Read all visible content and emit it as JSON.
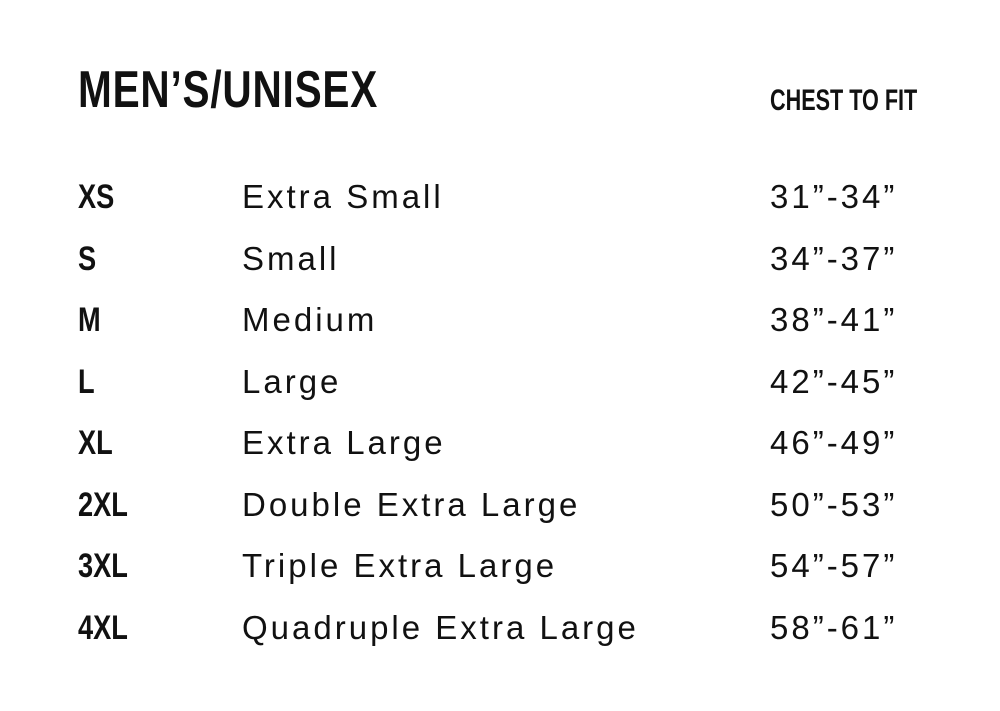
{
  "title": "MEN’S/UNISEX",
  "column_header": "CHEST TO FIT",
  "rows": [
    {
      "code": "XS",
      "name": "Extra Small",
      "chest": "31”-34”"
    },
    {
      "code": "S",
      "name": "Small",
      "chest": "34”-37”"
    },
    {
      "code": "M",
      "name": "Medium",
      "chest": "38”-41”"
    },
    {
      "code": "L",
      "name": "Large",
      "chest": "42”-45”"
    },
    {
      "code": "XL",
      "name": "Extra Large",
      "chest": "46”-49”"
    },
    {
      "code": "2XL",
      "name": "Double Extra Large",
      "chest": "50”-53”"
    },
    {
      "code": "3XL",
      "name": "Triple Extra Large",
      "chest": "54”-57”"
    },
    {
      "code": "4XL",
      "name": "Quadruple Extra Large",
      "chest": "58”-61”"
    }
  ]
}
